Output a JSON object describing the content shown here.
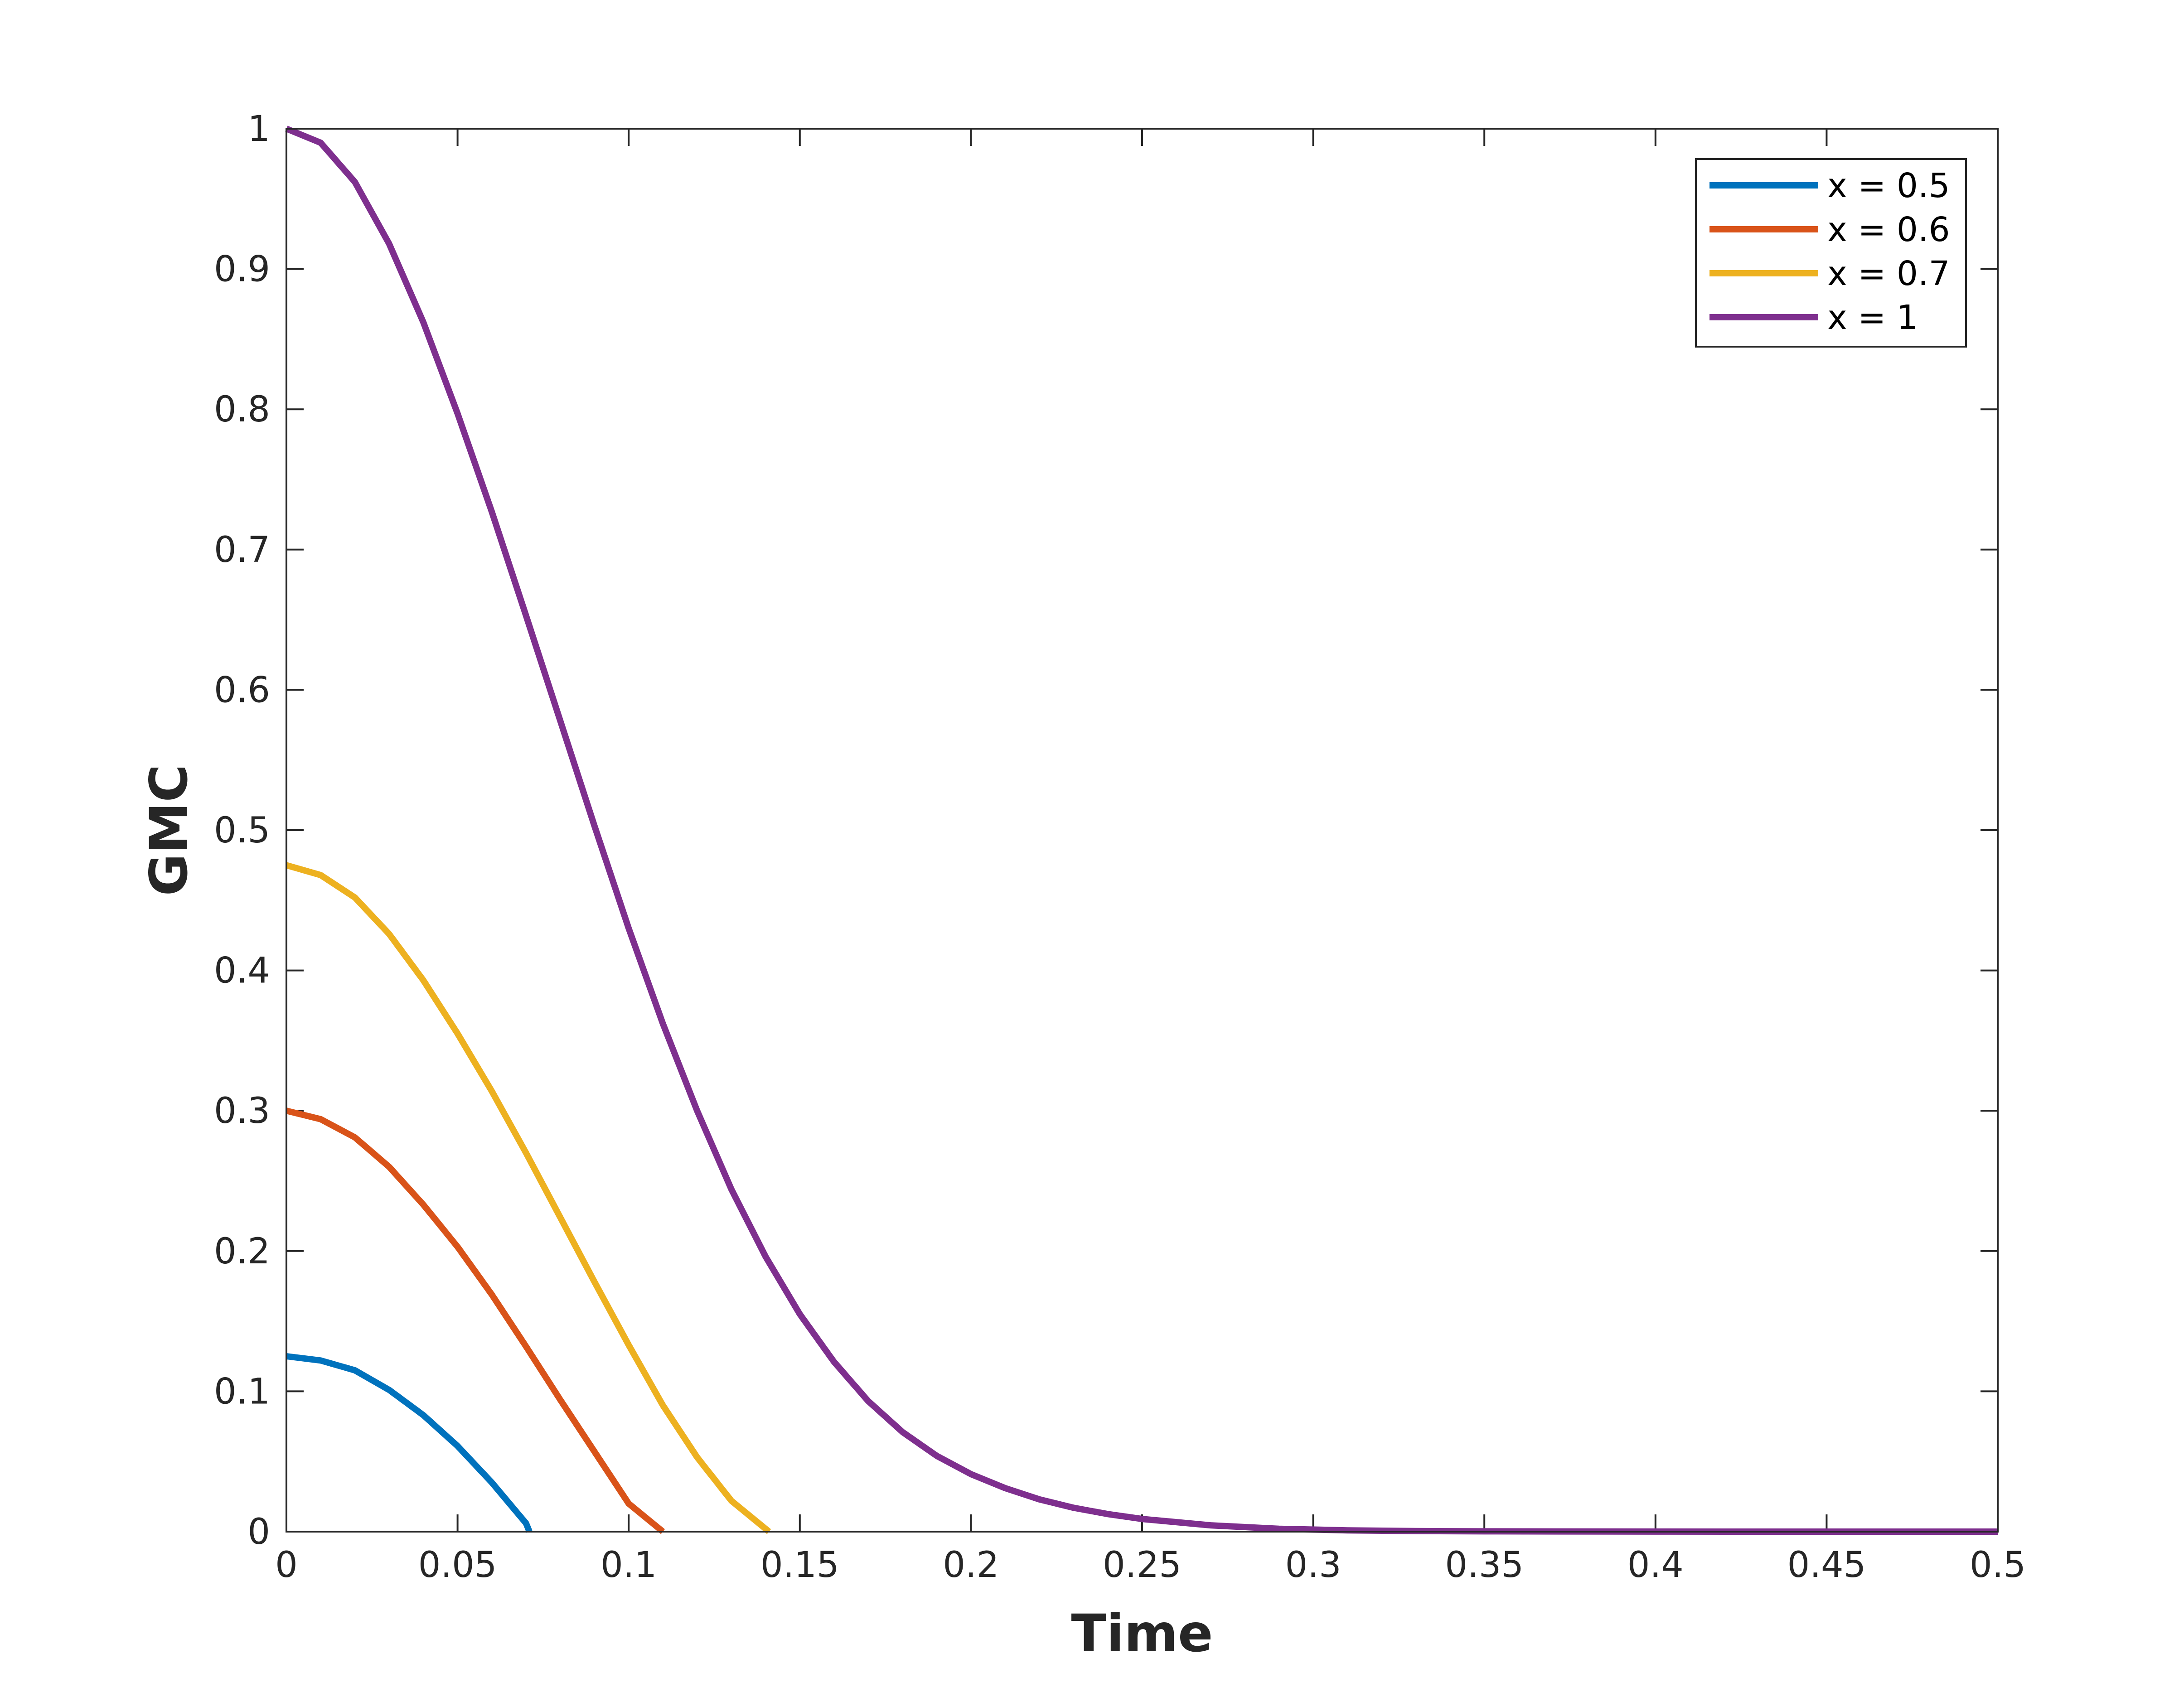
{
  "chart_data": {
    "type": "line",
    "title": "",
    "xlabel": "Time",
    "ylabel": "GMC",
    "xlim": [
      0,
      0.5
    ],
    "ylim": [
      0,
      1
    ],
    "xticks": [
      "0",
      "0.05",
      "0.1",
      "0.15",
      "0.2",
      "0.25",
      "0.3",
      "0.35",
      "0.4",
      "0.45",
      "0.5"
    ],
    "yticks": [
      "0",
      "0.1",
      "0.2",
      "0.3",
      "0.4",
      "0.5",
      "0.6",
      "0.7",
      "0.8",
      "0.9",
      "1"
    ],
    "grid": false,
    "legend_position": "top-right",
    "series": [
      {
        "name": "x = 0.5",
        "color": "#0072BD",
        "x": [
          0,
          0.01,
          0.02,
          0.03,
          0.04,
          0.05,
          0.06,
          0.07,
          0.071
        ],
        "y": [
          0.125,
          0.122,
          0.115,
          0.101,
          0.083,
          0.061,
          0.035,
          0.006,
          0
        ]
      },
      {
        "name": "x = 0.6",
        "color": "#D95319",
        "x": [
          0,
          0.01,
          0.02,
          0.03,
          0.04,
          0.05,
          0.06,
          0.07,
          0.08,
          0.09,
          0.1,
          0.11
        ],
        "y": [
          0.3,
          0.294,
          0.281,
          0.26,
          0.233,
          0.203,
          0.169,
          0.132,
          0.094,
          0.057,
          0.02,
          0
        ]
      },
      {
        "name": "x = 0.7",
        "color": "#EDB120",
        "x": [
          0,
          0.01,
          0.02,
          0.03,
          0.04,
          0.05,
          0.06,
          0.07,
          0.08,
          0.09,
          0.1,
          0.11,
          0.12,
          0.13,
          0.141
        ],
        "y": [
          0.475,
          0.468,
          0.452,
          0.426,
          0.393,
          0.355,
          0.314,
          0.27,
          0.224,
          0.178,
          0.133,
          0.09,
          0.053,
          0.022,
          0
        ]
      },
      {
        "name": "x = 1",
        "color": "#7E2F8E",
        "x": [
          0,
          0.01,
          0.02,
          0.03,
          0.04,
          0.05,
          0.06,
          0.07,
          0.08,
          0.09,
          0.1,
          0.11,
          0.12,
          0.13,
          0.14,
          0.15,
          0.16,
          0.17,
          0.18,
          0.19,
          0.2,
          0.21,
          0.22,
          0.23,
          0.24,
          0.25,
          0.27,
          0.29,
          0.31,
          0.33,
          0.35,
          0.4,
          0.45,
          0.5
        ],
        "y": [
          1.0,
          0.99,
          0.962,
          0.918,
          0.862,
          0.797,
          0.727,
          0.653,
          0.578,
          0.503,
          0.43,
          0.362,
          0.3,
          0.244,
          0.196,
          0.155,
          0.121,
          0.093,
          0.071,
          0.054,
          0.041,
          0.031,
          0.023,
          0.017,
          0.0125,
          0.009,
          0.0045,
          0.002,
          0.0009,
          0.0004,
          0.0002,
          3e-05,
          5e-06,
          0
        ]
      }
    ]
  }
}
